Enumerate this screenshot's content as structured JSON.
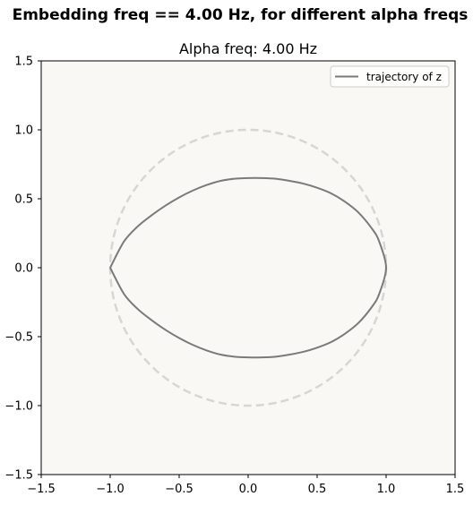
{
  "figure": {
    "suptitle": "Embedding freq == 4.00 Hz, for different alpha freqs"
  },
  "chart_data": {
    "type": "line",
    "title": "Alpha freq: 4.00 Hz",
    "xlabel": "",
    "ylabel": "",
    "xlim": [
      -1.5,
      1.5
    ],
    "ylim": [
      -1.5,
      1.5
    ],
    "xticks": [
      "−1.5",
      "−1.0",
      "−0.5",
      "0.0",
      "0.5",
      "1.0",
      "1.5"
    ],
    "yticks": [
      "1.5",
      "1.0",
      "0.5",
      "0.0",
      "−0.5",
      "−1.0",
      "−1.5"
    ],
    "xtick_values": [
      -1.5,
      -1.0,
      -0.5,
      0.0,
      0.5,
      1.0,
      1.5
    ],
    "ytick_values": [
      1.5,
      1.0,
      0.5,
      0.0,
      -0.5,
      -1.0,
      -1.5
    ],
    "grid": false,
    "legend_position": "top-right",
    "aspect": "equal",
    "background_color": "#f9f8f4",
    "series": [
      {
        "name": "trajectory of z",
        "color": "#7a7a7a",
        "style": "solid",
        "x": [
          -1.0,
          -0.9,
          -0.8,
          -0.7,
          -0.6,
          -0.5,
          -0.4,
          -0.3,
          -0.2,
          -0.1,
          0.0,
          0.1,
          0.2,
          0.3,
          0.4,
          0.5,
          0.6,
          0.7,
          0.8,
          0.9,
          0.95,
          1.0,
          0.95,
          0.9,
          0.8,
          0.7,
          0.6,
          0.5,
          0.4,
          0.3,
          0.2,
          0.1,
          0.0,
          -0.1,
          -0.2,
          -0.3,
          -0.4,
          -0.5,
          -0.6,
          -0.7,
          -0.8,
          -0.9,
          -1.0
        ],
        "y": [
          0.0,
          0.19,
          0.3,
          0.38,
          0.45,
          0.51,
          0.56,
          0.6,
          0.63,
          0.645,
          0.65,
          0.65,
          0.645,
          0.63,
          0.61,
          0.58,
          0.54,
          0.48,
          0.4,
          0.28,
          0.19,
          0.0,
          -0.19,
          -0.28,
          -0.4,
          -0.48,
          -0.54,
          -0.58,
          -0.61,
          -0.63,
          -0.645,
          -0.65,
          -0.65,
          -0.645,
          -0.63,
          -0.6,
          -0.56,
          -0.51,
          -0.45,
          -0.38,
          -0.3,
          -0.19,
          0.0
        ]
      },
      {
        "color": "#d8d6d2",
        "style": "dashed",
        "shape": "unit-circle",
        "radius": 1.0
      }
    ]
  }
}
